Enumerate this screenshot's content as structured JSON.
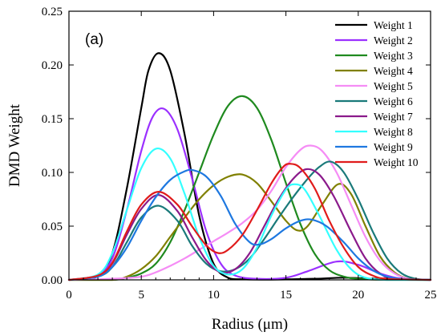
{
  "chart_data": {
    "type": "line",
    "panel_label": "(a)",
    "xlabel": "Radius (μm)",
    "ylabel": "DMD Weight",
    "xlim": [
      0,
      25
    ],
    "ylim": [
      0,
      0.25
    ],
    "x_ticks": [
      0,
      5,
      10,
      15,
      20,
      25
    ],
    "x_tick_labels": [
      "0",
      "5",
      "10",
      "15",
      "20",
      "25"
    ],
    "y_ticks": [
      0,
      0.05,
      0.1,
      0.15,
      0.2,
      0.25
    ],
    "y_tick_labels": [
      "0.00",
      "0.05",
      "0.10",
      "0.15",
      "0.20",
      "0.25"
    ],
    "grid": false,
    "legend_position": "top-right",
    "series": [
      {
        "name": "Weight 1",
        "color": "#000000",
        "points": [
          [
            0,
            0
          ],
          [
            1,
            0.0005
          ],
          [
            2,
            0.004
          ],
          [
            3,
            0.025
          ],
          [
            4,
            0.085
          ],
          [
            5,
            0.16
          ],
          [
            5.5,
            0.195
          ],
          [
            6.2,
            0.211
          ],
          [
            7,
            0.195
          ],
          [
            8,
            0.135
          ],
          [
            9,
            0.06
          ],
          [
            10,
            0.015
          ],
          [
            11,
            0.002
          ],
          [
            12,
            0.0005
          ],
          [
            14,
            0.0003
          ],
          [
            17,
            0.001
          ],
          [
            19,
            0.002
          ],
          [
            21,
            0.001
          ],
          [
            23,
            0.0002
          ],
          [
            25,
            0
          ]
        ]
      },
      {
        "name": "Weight 2",
        "color": "#9B30FF",
        "points": [
          [
            0,
            0
          ],
          [
            1,
            0.0005
          ],
          [
            2,
            0.004
          ],
          [
            3,
            0.02
          ],
          [
            4,
            0.065
          ],
          [
            5,
            0.12
          ],
          [
            5.8,
            0.152
          ],
          [
            6.6,
            0.159
          ],
          [
            7.5,
            0.14
          ],
          [
            8.5,
            0.095
          ],
          [
            9.5,
            0.045
          ],
          [
            10.5,
            0.015
          ],
          [
            11.5,
            0.004
          ],
          [
            13,
            0.001
          ],
          [
            15,
            0.002
          ],
          [
            16.5,
            0.008
          ],
          [
            18.5,
            0.017
          ],
          [
            20,
            0.014
          ],
          [
            21.5,
            0.006
          ],
          [
            23,
            0.001
          ],
          [
            25,
            0
          ]
        ]
      },
      {
        "name": "Weight 3",
        "color": "#1F8A1F",
        "points": [
          [
            0,
            0
          ],
          [
            3,
            0
          ],
          [
            4,
            0.002
          ],
          [
            5,
            0.006
          ],
          [
            6,
            0.015
          ],
          [
            7,
            0.035
          ],
          [
            8,
            0.065
          ],
          [
            9,
            0.1
          ],
          [
            10,
            0.135
          ],
          [
            11,
            0.162
          ],
          [
            12,
            0.171
          ],
          [
            13,
            0.16
          ],
          [
            14,
            0.13
          ],
          [
            15,
            0.09
          ],
          [
            16,
            0.052
          ],
          [
            17,
            0.024
          ],
          [
            18,
            0.009
          ],
          [
            19,
            0.003
          ],
          [
            20,
            0.001
          ],
          [
            22,
            0
          ],
          [
            25,
            0
          ]
        ]
      },
      {
        "name": "Weight 4",
        "color": "#808000",
        "points": [
          [
            0,
            0
          ],
          [
            3,
            0
          ],
          [
            4,
            0.003
          ],
          [
            5,
            0.01
          ],
          [
            6,
            0.022
          ],
          [
            7,
            0.04
          ],
          [
            8,
            0.058
          ],
          [
            9,
            0.075
          ],
          [
            10,
            0.088
          ],
          [
            11,
            0.096
          ],
          [
            12,
            0.098
          ],
          [
            13,
            0.09
          ],
          [
            14,
            0.073
          ],
          [
            15,
            0.055
          ],
          [
            15.8,
            0.046
          ],
          [
            16.5,
            0.05
          ],
          [
            17.5,
            0.07
          ],
          [
            18.6,
            0.089
          ],
          [
            19.5,
            0.08
          ],
          [
            20.5,
            0.05
          ],
          [
            21.5,
            0.022
          ],
          [
            22.5,
            0.007
          ],
          [
            23.5,
            0.001
          ],
          [
            25,
            0
          ]
        ]
      },
      {
        "name": "Weight 5",
        "color": "#F58CF5",
        "points": [
          [
            0,
            0
          ],
          [
            3,
            0.001
          ],
          [
            5,
            0.003
          ],
          [
            6,
            0.007
          ],
          [
            7,
            0.013
          ],
          [
            8,
            0.02
          ],
          [
            9,
            0.028
          ],
          [
            10,
            0.036
          ],
          [
            11,
            0.044
          ],
          [
            12,
            0.053
          ],
          [
            13,
            0.065
          ],
          [
            14,
            0.083
          ],
          [
            15,
            0.105
          ],
          [
            16,
            0.121
          ],
          [
            16.7,
            0.125
          ],
          [
            17.5,
            0.12
          ],
          [
            18.5,
            0.1
          ],
          [
            19.5,
            0.07
          ],
          [
            20.5,
            0.04
          ],
          [
            21.5,
            0.018
          ],
          [
            22.5,
            0.006
          ],
          [
            23.5,
            0.001
          ],
          [
            25,
            0
          ]
        ]
      },
      {
        "name": "Weight 6",
        "color": "#1A7A7A",
        "points": [
          [
            0,
            0
          ],
          [
            2,
            0.003
          ],
          [
            3,
            0.012
          ],
          [
            4,
            0.035
          ],
          [
            5,
            0.058
          ],
          [
            6.2,
            0.069
          ],
          [
            7.5,
            0.055
          ],
          [
            8.5,
            0.032
          ],
          [
            9.5,
            0.015
          ],
          [
            10.5,
            0.008
          ],
          [
            11.5,
            0.01
          ],
          [
            12.5,
            0.02
          ],
          [
            13.5,
            0.038
          ],
          [
            14.5,
            0.058
          ],
          [
            15.5,
            0.077
          ],
          [
            16.5,
            0.094
          ],
          [
            17.3,
            0.105
          ],
          [
            18.1,
            0.11
          ],
          [
            19,
            0.1
          ],
          [
            20,
            0.075
          ],
          [
            21,
            0.045
          ],
          [
            22,
            0.02
          ],
          [
            23,
            0.006
          ],
          [
            24,
            0.001
          ],
          [
            25,
            0
          ]
        ]
      },
      {
        "name": "Weight 7",
        "color": "#8B1A8B",
        "points": [
          [
            0,
            0
          ],
          [
            2,
            0.004
          ],
          [
            3,
            0.015
          ],
          [
            4,
            0.042
          ],
          [
            5,
            0.066
          ],
          [
            6.2,
            0.079
          ],
          [
            7.5,
            0.064
          ],
          [
            8.5,
            0.04
          ],
          [
            9.5,
            0.018
          ],
          [
            10.5,
            0.007
          ],
          [
            11.5,
            0.01
          ],
          [
            12.5,
            0.025
          ],
          [
            13.5,
            0.05
          ],
          [
            14.5,
            0.075
          ],
          [
            15.5,
            0.094
          ],
          [
            16.4,
            0.103
          ],
          [
            17.3,
            0.098
          ],
          [
            18.3,
            0.078
          ],
          [
            19.5,
            0.045
          ],
          [
            20.5,
            0.02
          ],
          [
            21.5,
            0.006
          ],
          [
            22.5,
            0.001
          ],
          [
            25,
            0
          ]
        ]
      },
      {
        "name": "Weight 8",
        "color": "#33FFFF",
        "points": [
          [
            0,
            0
          ],
          [
            2,
            0.005
          ],
          [
            3,
            0.025
          ],
          [
            4,
            0.065
          ],
          [
            5,
            0.104
          ],
          [
            6,
            0.122
          ],
          [
            7,
            0.113
          ],
          [
            8,
            0.08
          ],
          [
            9,
            0.04
          ],
          [
            10,
            0.013
          ],
          [
            11,
            0.005
          ],
          [
            12,
            0.01
          ],
          [
            13,
            0.03
          ],
          [
            14,
            0.06
          ],
          [
            15,
            0.084
          ],
          [
            15.6,
            0.089
          ],
          [
            16.3,
            0.084
          ],
          [
            17.3,
            0.06
          ],
          [
            18.5,
            0.028
          ],
          [
            19.5,
            0.01
          ],
          [
            20.5,
            0.002
          ],
          [
            22,
            0
          ],
          [
            25,
            0
          ]
        ]
      },
      {
        "name": "Weight 9",
        "color": "#1E78E0",
        "points": [
          [
            0,
            0
          ],
          [
            2,
            0.003
          ],
          [
            3,
            0.012
          ],
          [
            4,
            0.03
          ],
          [
            5,
            0.055
          ],
          [
            6,
            0.077
          ],
          [
            7,
            0.093
          ],
          [
            8,
            0.101
          ],
          [
            8.6,
            0.102
          ],
          [
            9.5,
            0.096
          ],
          [
            10.5,
            0.078
          ],
          [
            11.5,
            0.052
          ],
          [
            12.5,
            0.035
          ],
          [
            13.2,
            0.033
          ],
          [
            14,
            0.038
          ],
          [
            15,
            0.048
          ],
          [
            16,
            0.055
          ],
          [
            16.8,
            0.056
          ],
          [
            17.8,
            0.05
          ],
          [
            19,
            0.035
          ],
          [
            20,
            0.02
          ],
          [
            21,
            0.009
          ],
          [
            22,
            0.003
          ],
          [
            23,
            0.001
          ],
          [
            25,
            0
          ]
        ]
      },
      {
        "name": "Weight 10",
        "color": "#E01B1B",
        "points": [
          [
            0,
            0
          ],
          [
            2,
            0.004
          ],
          [
            3,
            0.016
          ],
          [
            4,
            0.045
          ],
          [
            5,
            0.07
          ],
          [
            6.2,
            0.082
          ],
          [
            7.5,
            0.07
          ],
          [
            8.5,
            0.05
          ],
          [
            9.5,
            0.032
          ],
          [
            10.3,
            0.025
          ],
          [
            11,
            0.028
          ],
          [
            12,
            0.042
          ],
          [
            13,
            0.065
          ],
          [
            14,
            0.09
          ],
          [
            14.8,
            0.105
          ],
          [
            15.3,
            0.108
          ],
          [
            16,
            0.104
          ],
          [
            17,
            0.085
          ],
          [
            18,
            0.055
          ],
          [
            19,
            0.03
          ],
          [
            20,
            0.012
          ],
          [
            21,
            0.004
          ],
          [
            22,
            0.001
          ],
          [
            25,
            0
          ]
        ]
      }
    ]
  }
}
